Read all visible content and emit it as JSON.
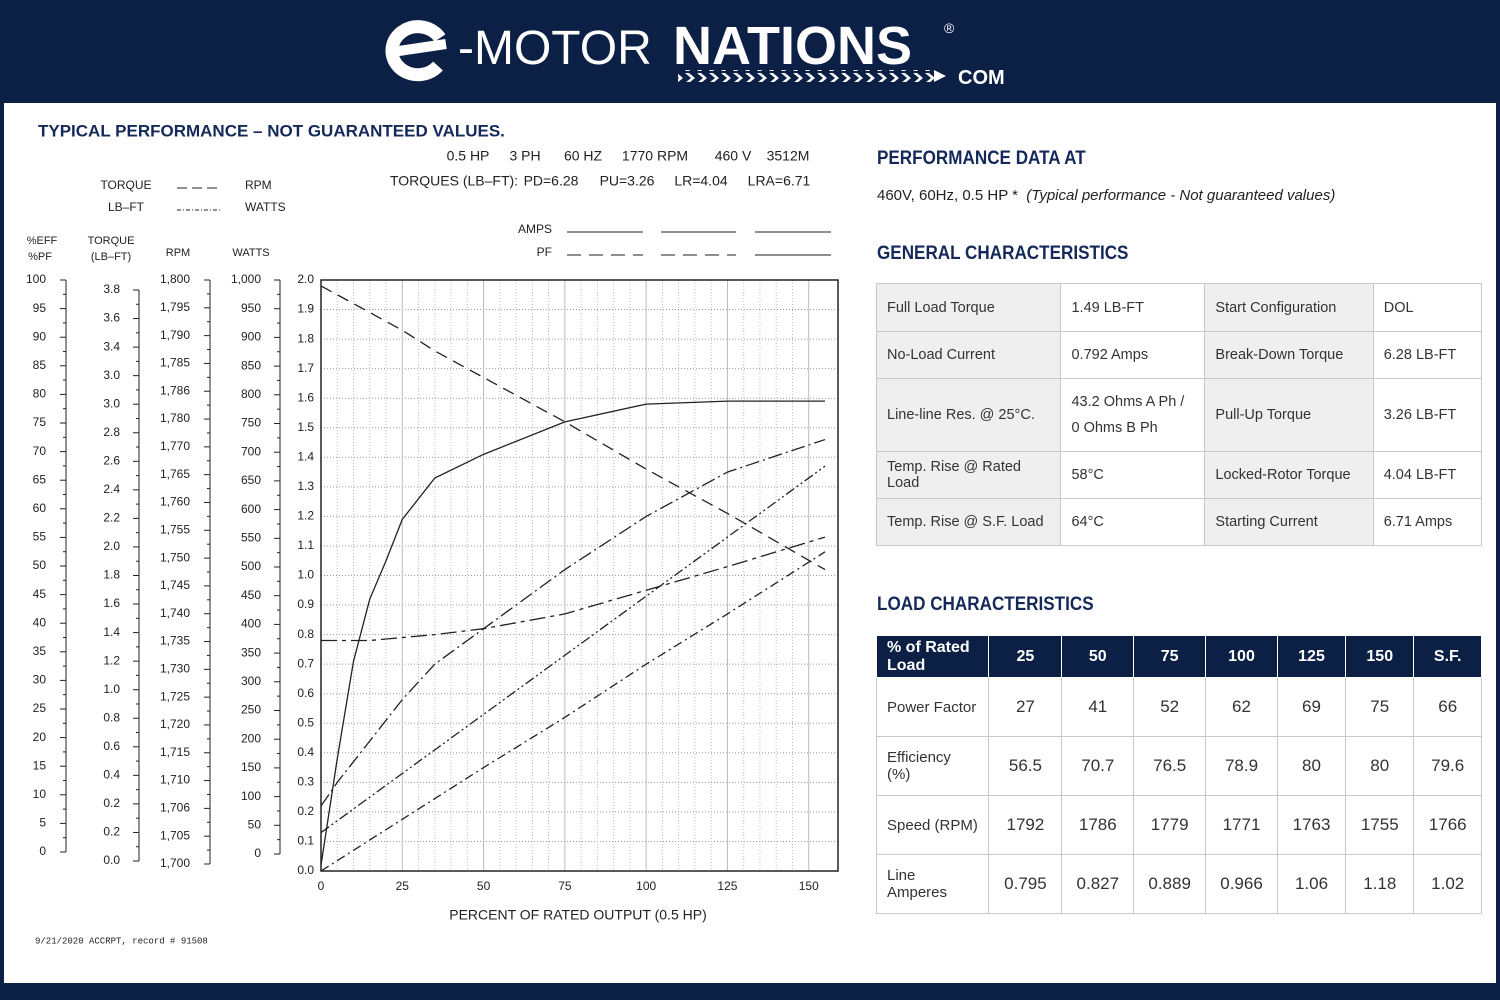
{
  "header": {
    "brand_prefix": "-MOTOR",
    "brand_name": "NATIONS",
    "registered": "®",
    "domain": "COM"
  },
  "left_title": "TYPICAL PERFORMANCE – NOT GUARANTEED VALUES.",
  "motor_specs": [
    "0.5 HP",
    "3 PH",
    "60 HZ",
    "1770 RPM",
    "460 V",
    "3512M"
  ],
  "torques": [
    "TORQUES (LB–FT):",
    "PD=6.28",
    "PU=3.26",
    "LR=4.04",
    "LRA=6.71"
  ],
  "legend": {
    "torque": "TORQUE",
    "lbft": "LB–FT",
    "rpm": "RPM",
    "watts": "WATTS",
    "amps": "AMPS",
    "pf": "PF"
  },
  "side_scales": {
    "eff": {
      "headers": [
        "%EFF",
        "%PF"
      ],
      "labels": [
        "100",
        "95",
        "90",
        "85",
        "80",
        "75",
        "70",
        "65",
        "60",
        "55",
        "50",
        "45",
        "40",
        "35",
        "30",
        "25",
        "20",
        "15",
        "10",
        "5",
        "0"
      ]
    },
    "torque": {
      "headers": [
        "TORQUE",
        "(LB–FT)"
      ],
      "labels": [
        "3.8",
        "3.6",
        "3.4",
        "3.0",
        "3.0",
        "2.8",
        "2.6",
        "2.4",
        "2.2",
        "2.0",
        "1.8",
        "1.6",
        "1.4",
        "1.2",
        "1.0",
        "0.8",
        "0.6",
        "0.4",
        "0.2",
        "0.2",
        "0.0"
      ]
    },
    "rpm": {
      "headers": [
        "RPM"
      ],
      "labels": [
        "1,800",
        "1,795",
        "1,790",
        "1,785",
        "1,786",
        "1,780",
        "1,770",
        "1,765",
        "1,760",
        "1,755",
        "1,750",
        "1,745",
        "1,740",
        "1,735",
        "1,730",
        "1,725",
        "1,720",
        "1,715",
        "1,710",
        "1,706",
        "1,705",
        "1,700"
      ]
    },
    "watts": {
      "headers": [
        "WATTS"
      ],
      "labels": [
        "1,000",
        "950",
        "900",
        "850",
        "800",
        "750",
        "700",
        "650",
        "600",
        "550",
        "500",
        "450",
        "400",
        "350",
        "300",
        "250",
        "200",
        "150",
        "100",
        "50",
        "0"
      ]
    }
  },
  "chart_data": {
    "type": "line",
    "xlabel": "PERCENT OF RATED OUTPUT (0.5 HP)",
    "x": [
      0,
      5,
      10,
      15,
      20,
      25,
      35,
      50,
      75,
      100,
      125,
      155
    ],
    "series": [
      {
        "color": "#222222",
        "dash": "none",
        "values": [
          0.02,
          0.38,
          0.71,
          0.92,
          1.05,
          1.19,
          1.33,
          1.41,
          1.52,
          1.58,
          1.59,
          1.59
        ]
      },
      {
        "color": "#222222",
        "dash": "12 7",
        "values": [
          1.98,
          1.95,
          1.92,
          1.89,
          1.86,
          1.83,
          1.76,
          1.67,
          1.52,
          1.36,
          1.21,
          1.02
        ]
      },
      {
        "color": "#222222",
        "dash": "16 5 4 5",
        "values": [
          0.78,
          0.78,
          0.78,
          0.78,
          0.785,
          0.79,
          0.8,
          0.82,
          0.87,
          0.95,
          1.03,
          1.13
        ]
      },
      {
        "color": "#222222",
        "dash": "14 4 2 4",
        "values": [
          0.22,
          0.3,
          0.37,
          0.44,
          0.51,
          0.58,
          0.7,
          0.82,
          1.02,
          1.2,
          1.35,
          1.46
        ]
      },
      {
        "color": "#222222",
        "dash": "10 3 2 3 2 3",
        "values": [
          0.13,
          0.17,
          0.21,
          0.25,
          0.29,
          0.33,
          0.41,
          0.53,
          0.73,
          0.93,
          1.13,
          1.37
        ]
      },
      {
        "color": "#222222",
        "dash": "9 4 2 4",
        "values": [
          0,
          0.035,
          0.07,
          0.105,
          0.14,
          0.175,
          0.245,
          0.35,
          0.52,
          0.7,
          0.87,
          1.08
        ]
      }
    ],
    "xlim": [
      0,
      159
    ],
    "ylim": [
      0,
      2.0
    ],
    "xticks": [
      0,
      25,
      50,
      75,
      100,
      125,
      150
    ],
    "yticks": [
      {
        "value": 0,
        "label": "0.0"
      },
      0.1,
      0.2,
      0.3,
      0.4,
      0.5,
      0.6,
      0.7,
      0.8,
      0.9,
      {
        "value": 1,
        "label": "1.0"
      },
      1.1,
      1.2,
      1.3,
      1.4,
      1.5,
      1.6,
      1.7,
      1.8,
      1.9,
      {
        "value": 2,
        "label": "2.0"
      }
    ],
    "grid": true
  },
  "footer": "9/21/2020  ACCRPT, record # 91508",
  "performance": {
    "title": "PERFORMANCE DATA AT",
    "subtitle": "460V, 60Hz, 0.5 HP *",
    "note": "(Typical performance - Not guaranteed values)"
  },
  "general": {
    "title": "GENERAL CHARACTERISTICS",
    "rows": [
      [
        "Full Load Torque",
        "1.49 LB-FT",
        "Start Configuration",
        "DOL"
      ],
      [
        "No-Load Current",
        "0.792 Amps",
        "Break-Down Torque",
        "6.28 LB-FT"
      ],
      [
        "Line-line Res. @ 25°C.",
        [
          "43.2 Ohms A Ph /",
          "0 Ohms B Ph"
        ],
        "Pull-Up Torque",
        "3.26 LB-FT"
      ],
      [
        "Temp. Rise @ Rated Load",
        "58°C",
        "Locked-Rotor Torque",
        "4.04 LB-FT"
      ],
      [
        "Temp. Rise @ S.F. Load",
        "64°C",
        "Starting Current",
        "6.71 Amps"
      ]
    ]
  },
  "load": {
    "title": "LOAD CHARACTERISTICS",
    "header": [
      "% of Rated Load",
      "25",
      "50",
      "75",
      "100",
      "125",
      "150",
      "S.F."
    ],
    "rows": [
      [
        "Power Factor",
        "27",
        "41",
        "52",
        "62",
        "69",
        "75",
        "66"
      ],
      [
        "Efficiency (%)",
        "56.5",
        "70.7",
        "76.5",
        "78.9",
        "80",
        "80",
        "79.6"
      ],
      [
        "Speed (RPM)",
        "1792",
        "1786",
        "1779",
        "1771",
        "1763",
        "1755",
        "1766"
      ],
      [
        "Line Amperes",
        "0.795",
        "0.827",
        "0.889",
        "0.966",
        "1.06",
        "1.18",
        "1.02"
      ]
    ]
  }
}
